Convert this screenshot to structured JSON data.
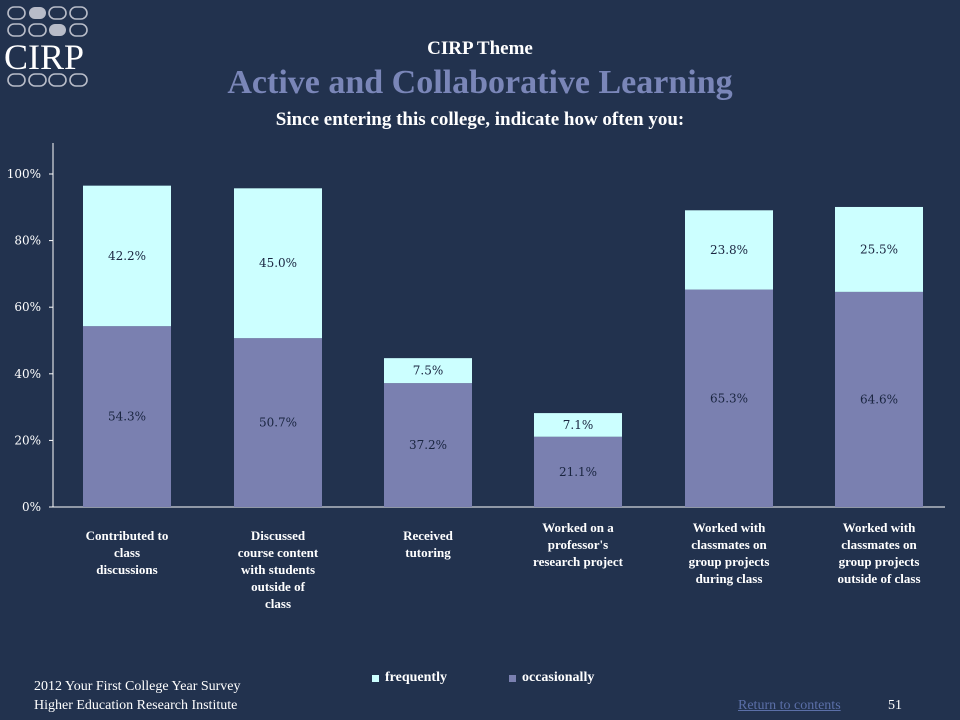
{
  "header": {
    "logo_text": "CIRP",
    "theme_label": "CIRP Theme",
    "title": "Active and Collaborative Learning",
    "subtitle": "Since entering this college, indicate how often you:"
  },
  "colors": {
    "background": "#22324e",
    "frequently": "#ccffff",
    "occasionally": "#7a80b0",
    "title_accent": "#7a86b8"
  },
  "chart_data": {
    "type": "bar",
    "stacked": true,
    "categories": [
      "Contributed to class discussions",
      "Discussed course content with students outside of class",
      "Received tutoring",
      "Worked on a professor's research project",
      "Worked with classmates on group projects during class",
      "Worked with classmates on group projects outside of class"
    ],
    "category_lines": [
      [
        "Contributed to",
        "class",
        "discussions"
      ],
      [
        "Discussed",
        "course content",
        "with students",
        "outside of",
        "class"
      ],
      [
        "Received",
        "tutoring"
      ],
      [
        "Worked on a",
        "professor's",
        "research project"
      ],
      [
        "Worked with",
        "classmates on",
        "group projects",
        "during class"
      ],
      [
        "Worked with",
        "classmates on",
        "group projects",
        "outside of class"
      ]
    ],
    "series": [
      {
        "name": "occasionally",
        "values": [
          54.3,
          50.7,
          37.2,
          21.1,
          65.3,
          64.6
        ],
        "labels": [
          "54.3%",
          "50.7%",
          "37.2%",
          "21.1%",
          "65.3%",
          "64.6%"
        ]
      },
      {
        "name": "frequently",
        "values": [
          42.2,
          45.0,
          7.5,
          7.1,
          23.8,
          25.5
        ],
        "labels": [
          "42.2%",
          "45.0%",
          "7.5%",
          "7.1%",
          "23.8%",
          "25.5%"
        ]
      }
    ],
    "ylim": [
      0,
      100
    ],
    "yticks": [
      "0%",
      "20%",
      "40%",
      "60%",
      "80%",
      "100%"
    ],
    "legend": {
      "placement": "bottom",
      "items": [
        "frequently",
        "occasionally"
      ]
    },
    "grid": false
  },
  "footer": {
    "survey": "2012 Your First College Year Survey",
    "institute": "Higher Education Research Institute",
    "return_link": "Return to contents",
    "page_number": "51"
  }
}
